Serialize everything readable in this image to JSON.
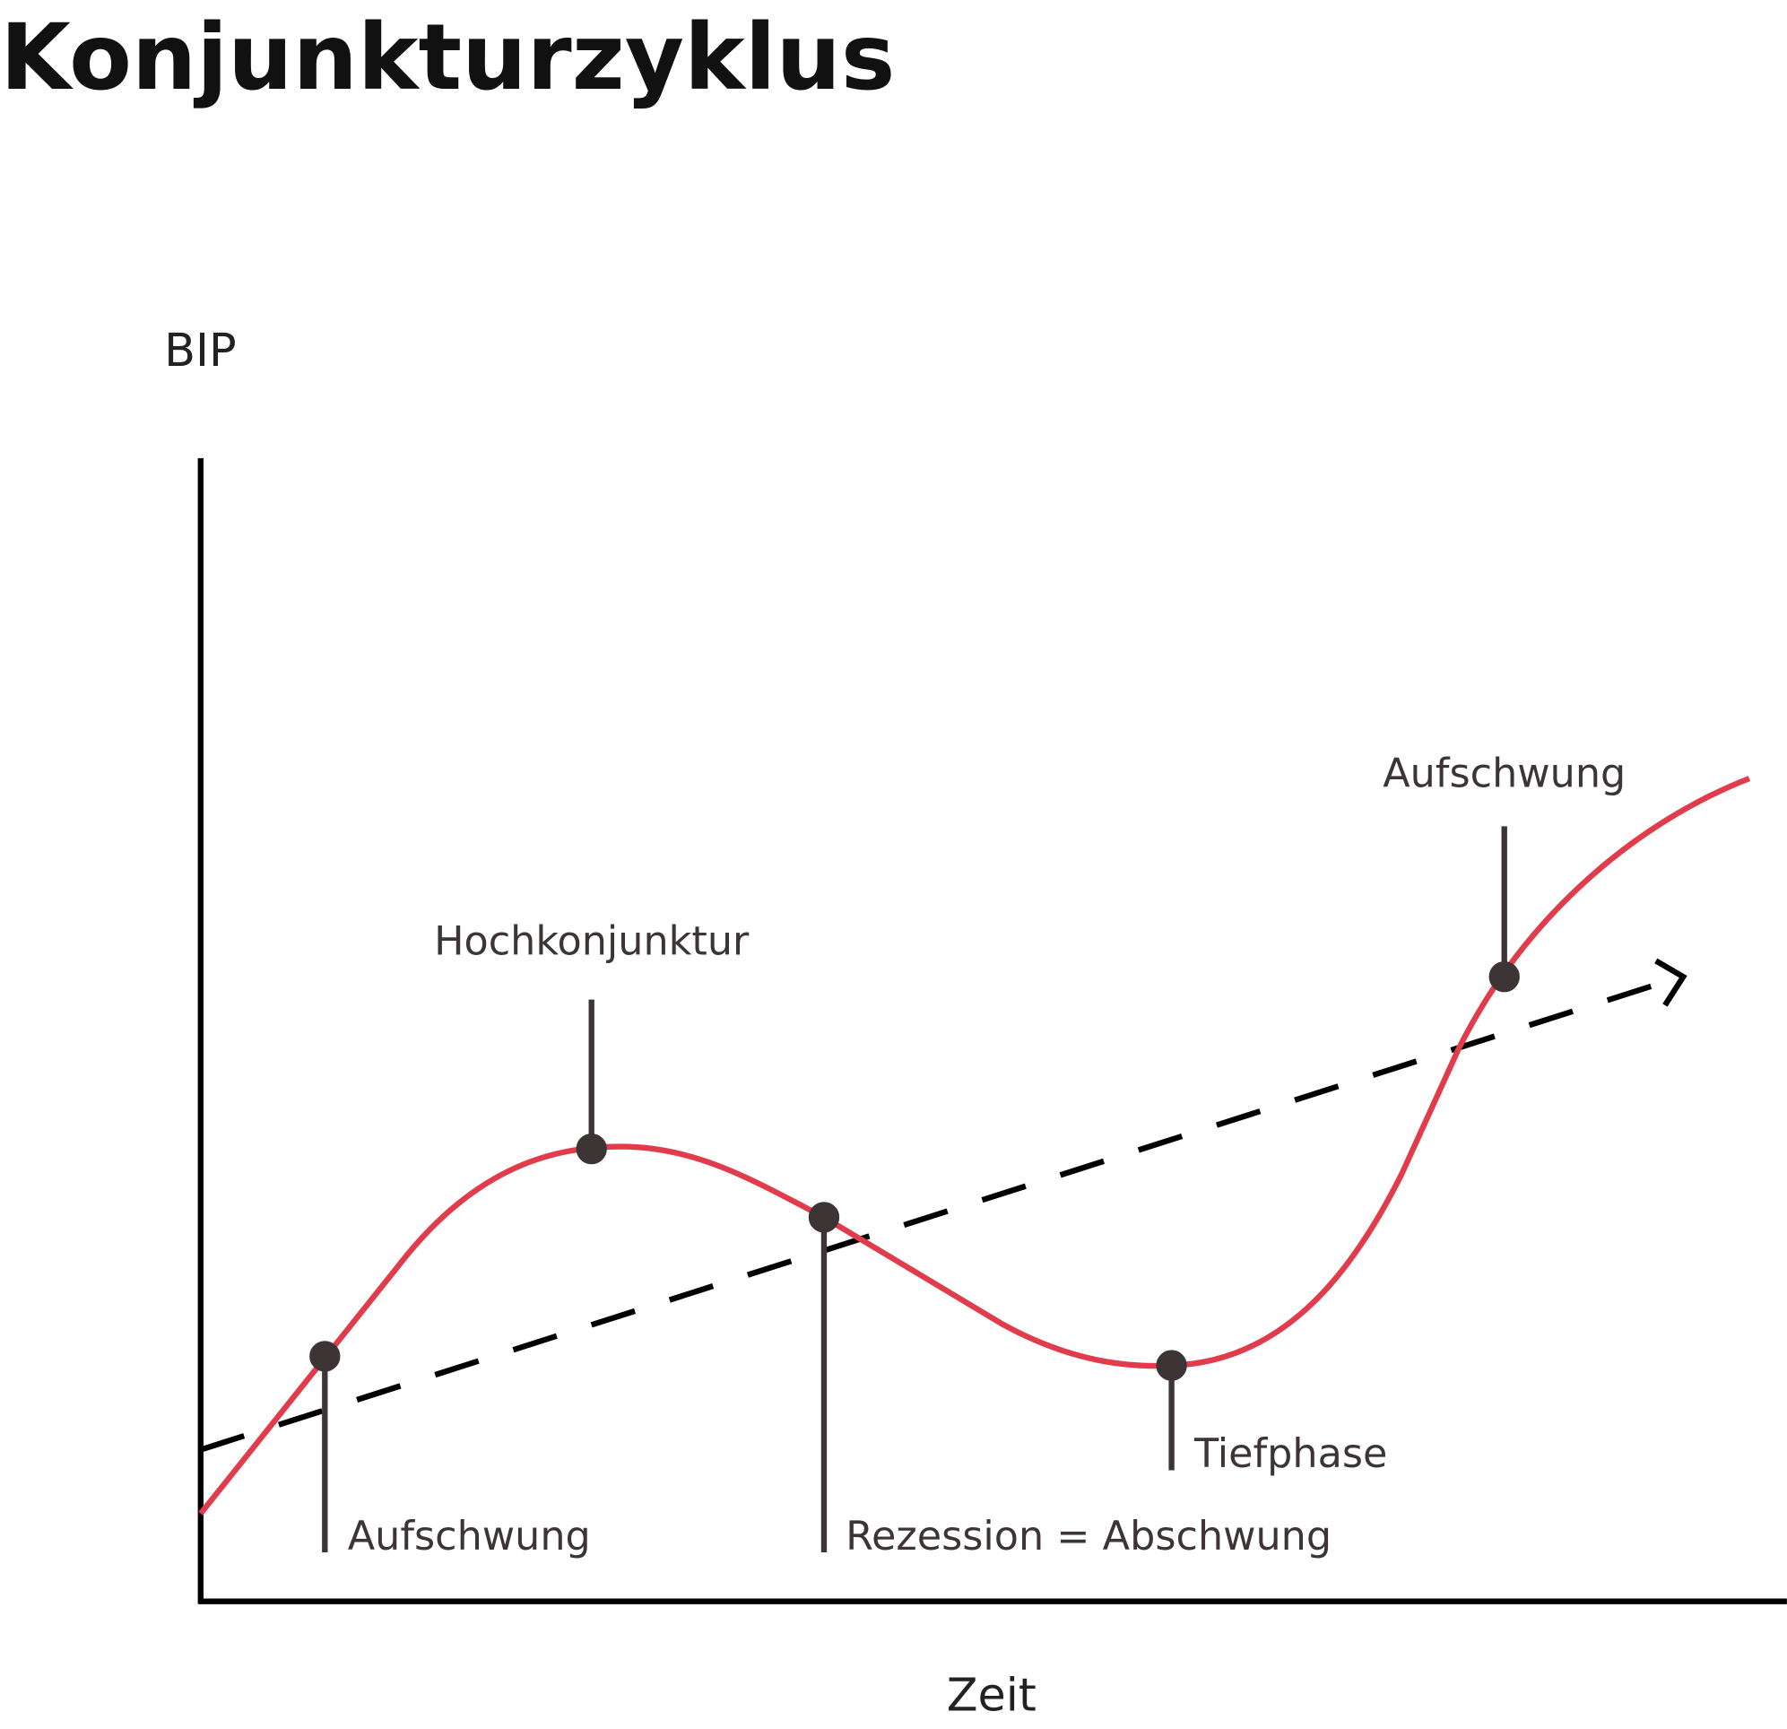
{
  "title": "Konjunkturzyklus",
  "axes": {
    "y_label": "BIP",
    "x_label": "Zeit"
  },
  "phases": [
    {
      "label": "Aufschwung"
    },
    {
      "label": "Hochkonjunktur"
    },
    {
      "label": "Rezession = Abschwung"
    },
    {
      "label": "Tiefphase"
    },
    {
      "label": "Aufschwung"
    }
  ]
}
